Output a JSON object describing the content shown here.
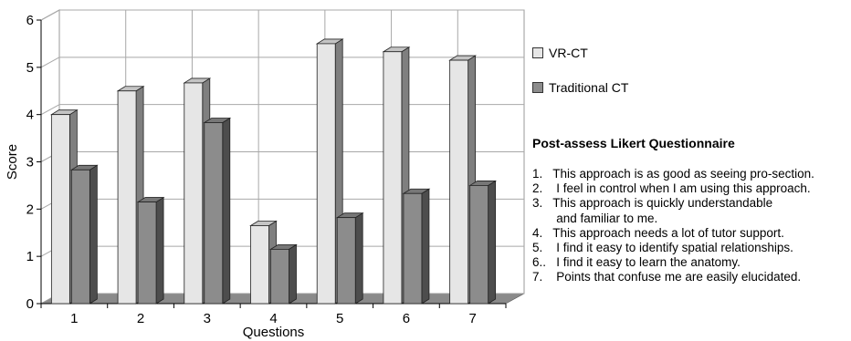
{
  "chart_data": {
    "type": "bar",
    "title": "",
    "xlabel": "Questions",
    "ylabel": "Score",
    "ylim": [
      0,
      6
    ],
    "yticks": [
      "0",
      "1",
      "2",
      "3",
      "4",
      "5",
      "6"
    ],
    "categories": [
      "1",
      "2",
      "3",
      "4",
      "5",
      "6",
      "7"
    ],
    "series": [
      {
        "name": "VR-CT",
        "values": [
          4.0,
          4.5,
          4.67,
          1.65,
          5.5,
          5.33,
          5.15
        ]
      },
      {
        "name": "Traditional CT",
        "values": [
          2.83,
          2.15,
          3.83,
          1.15,
          1.82,
          2.33,
          2.5
        ]
      }
    ],
    "grid": true,
    "legend_position": "right",
    "colors": {
      "VR-CT": "#e6e6e6",
      "Traditional CT": "#8c8c8c"
    }
  },
  "questionnaire": {
    "title": "Post-assess Likert Questionnaire",
    "items": [
      "1.   This approach is as good as seeing pro-section.",
      "2.    I feel in control when I am using this approach.",
      "3.   This approach is quickly understandable",
      "       and familiar to me.",
      "4.   This approach needs a lot of tutor support.",
      "5.    I find it easy to identify spatial relationships.",
      "6..   I find it easy to learn the anatomy.",
      "7.    Points that confuse me are easily elucidated."
    ]
  }
}
